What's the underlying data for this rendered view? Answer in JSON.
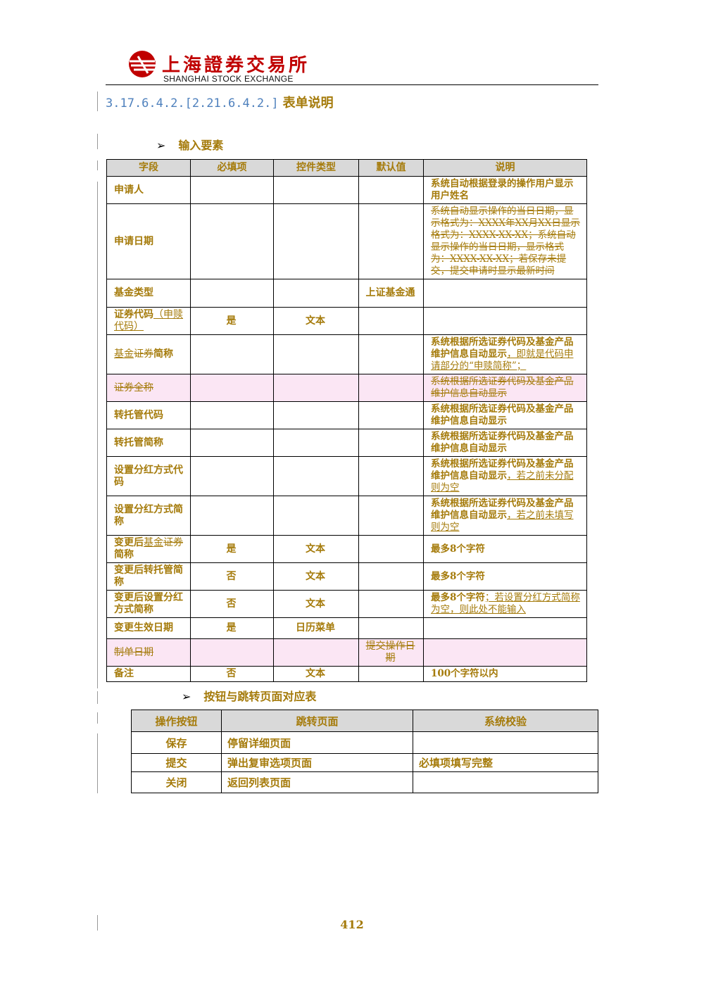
{
  "header": {
    "logo_cn": "上海證券交易所",
    "logo_en": "SHANGHAI  STOCK  EXCHANGE"
  },
  "section": {
    "number": "3.17.6.4.2.[2.21.6.4.2.]",
    "title": "表单说明"
  },
  "input_section_label": "输入要素",
  "input_table": {
    "headers": [
      "字段",
      "必填项",
      "控件类型",
      "默认值",
      "说明"
    ],
    "rows": [
      {
        "field": "申请人",
        "required": "",
        "control": "",
        "default": "",
        "desc": "系统自动根据登录的操作用户显示用户姓名"
      },
      {
        "field": "申请日期",
        "required": "",
        "control": "",
        "default": "",
        "desc_del": "系统自动显示操作的当日日期，显示格式为：XXXX年XX月XX日显示格式为：XXXX-XX-XX；系统自动显示操作的当日日期，显示格式为：XXXX-XX-XX；若保存未提交，提交申请时显示最新时间"
      },
      {
        "field": "基金类型",
        "required": "",
        "control": "",
        "default": "上证基金通",
        "desc": ""
      },
      {
        "field": "证券代码",
        "field_ins": "（申赎代码）",
        "required": "是",
        "control": "文本",
        "default": "",
        "desc": ""
      },
      {
        "field_ins": "基金",
        "field_del": "证券",
        "field": "简称",
        "required": "",
        "control": "",
        "default": "",
        "desc": "系统根据所选证券代码及基金产品维护信息自动显示",
        "desc_ins": "，即就是代码申请部分的“申赎简称”；"
      },
      {
        "field_del": "证券全称",
        "required": "",
        "control": "",
        "default": "",
        "desc_del": "系统根据所选证券代码及基金产品维护信息自动显示"
      },
      {
        "field": "转托管代码",
        "required": "",
        "control": "",
        "default": "",
        "desc": "系统根据所选证券代码及基金产品维护信息自动显示"
      },
      {
        "field": "转托管简称",
        "required": "",
        "control": "",
        "default": "",
        "desc": "系统根据所选证券代码及基金产品维护信息自动显示"
      },
      {
        "field": "设置分红方式代码",
        "required": "",
        "control": "",
        "default": "",
        "desc": "系统根据所选证券代码及基金产品维护信息自动显示",
        "desc_ins": "，若之前未分配则为空"
      },
      {
        "field": "设置分红方式简称",
        "required": "",
        "control": "",
        "default": "",
        "desc": "系统根据所选证券代码及基金产品维护信息自动显示",
        "desc_ins": "，若之前未填写则为空"
      },
      {
        "field": "变更后",
        "field_ins": "基金",
        "field_del": "证券",
        "field_end": "简称",
        "required": "是",
        "control": "文本",
        "default": "",
        "desc": "最多8个字符"
      },
      {
        "field": "变更后转托管简称",
        "required": "否",
        "control": "文本",
        "default": "",
        "desc": "最多8个字符"
      },
      {
        "field": "变更后设置分红方式简称",
        "required": "否",
        "control": "文本",
        "default": "",
        "desc": "最多8个字符",
        "desc_ins": "；若设置分红方式简称为空，则此处不能输入"
      },
      {
        "field": "变更生效日期",
        "required": "是",
        "control": "日历菜单",
        "default": "",
        "desc": ""
      },
      {
        "field_del": "制单日期",
        "required": "",
        "control": "",
        "default_del": "提交操作日期",
        "desc": ""
      },
      {
        "field": "备注",
        "required": "否",
        "control": "文本",
        "default": "",
        "desc": "100个字符以内"
      }
    ]
  },
  "button_section_label": "按钮与跳转页面对应表",
  "button_table": {
    "headers": [
      "操作按钮",
      "跳转页面",
      "系统校验"
    ],
    "rows": [
      {
        "button": "保存",
        "page": "停留详细页面",
        "check": ""
      },
      {
        "button": "提交",
        "page": "弹出复审选项页面",
        "check": "必填项填写完整"
      },
      {
        "button": "关闭",
        "page": "返回列表页面",
        "check": ""
      }
    ]
  },
  "page_number": "412",
  "colors": {
    "text": "#a57b0b",
    "number": "#4f81bd",
    "header_bg": "#d9d9d9",
    "deleted_row_bg": "#fbe6f4",
    "logo_red": "#c00000"
  }
}
